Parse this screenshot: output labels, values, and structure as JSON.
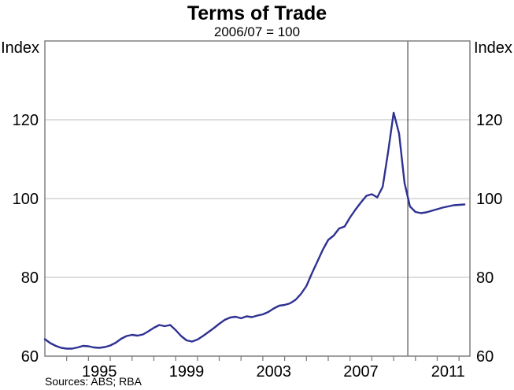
{
  "chart_data": {
    "type": "line",
    "title": "Terms of Trade",
    "subtitle": "2006/07 = 100",
    "y_axis_label_left": "Index",
    "y_axis_label_right": "Index",
    "source_note": "Sources: ABS; RBA",
    "ylim": [
      60,
      140
    ],
    "yticks_labeled": [
      60,
      80,
      100,
      120
    ],
    "gridlines_y": [
      80,
      100,
      120
    ],
    "xlim": [
      1992.5,
      2012.0
    ],
    "xticks": [
      1993.5,
      1994.5,
      1995.5,
      1996.5,
      1997.5,
      1998.5,
      1999.5,
      2000.5,
      2001.5,
      2002.5,
      2003.5,
      2004.5,
      2005.5,
      2006.5,
      2007.5,
      2008.5,
      2009.5,
      2010.5,
      2011.5
    ],
    "xtick_labels": [
      1995,
      1999,
      2003,
      2007,
      2011
    ],
    "vline_x": 2009.15,
    "legend_position": "none",
    "grid": "horizontal-only",
    "colors": {
      "line": "#2e3192",
      "frame": "#808080",
      "gridline": "#bdbdbd",
      "vline": "#4d4d4d",
      "text": "#000000"
    },
    "series": [
      {
        "name": "Terms of trade (quarterly, index 2006/07 = 100)",
        "points": [
          [
            1992.5,
            64.3
          ],
          [
            1992.75,
            63.3
          ],
          [
            1993.0,
            62.6
          ],
          [
            1993.25,
            62.1
          ],
          [
            1993.5,
            61.9
          ],
          [
            1993.75,
            61.9
          ],
          [
            1994.0,
            62.2
          ],
          [
            1994.25,
            62.6
          ],
          [
            1994.5,
            62.5
          ],
          [
            1994.75,
            62.2
          ],
          [
            1995.0,
            62.1
          ],
          [
            1995.25,
            62.3
          ],
          [
            1995.5,
            62.7
          ],
          [
            1995.75,
            63.4
          ],
          [
            1996.0,
            64.4
          ],
          [
            1996.25,
            65.1
          ],
          [
            1996.5,
            65.4
          ],
          [
            1996.75,
            65.2
          ],
          [
            1997.0,
            65.5
          ],
          [
            1997.25,
            66.3
          ],
          [
            1997.5,
            67.2
          ],
          [
            1997.75,
            67.9
          ],
          [
            1998.0,
            67.6
          ],
          [
            1998.25,
            67.9
          ],
          [
            1998.5,
            66.6
          ],
          [
            1998.75,
            65.1
          ],
          [
            1999.0,
            64.0
          ],
          [
            1999.25,
            63.7
          ],
          [
            1999.5,
            64.2
          ],
          [
            1999.75,
            65.1
          ],
          [
            2000.0,
            66.1
          ],
          [
            2000.25,
            67.1
          ],
          [
            2000.5,
            68.2
          ],
          [
            2000.75,
            69.2
          ],
          [
            2001.0,
            69.8
          ],
          [
            2001.25,
            70.0
          ],
          [
            2001.5,
            69.6
          ],
          [
            2001.75,
            70.1
          ],
          [
            2002.0,
            69.9
          ],
          [
            2002.25,
            70.3
          ],
          [
            2002.5,
            70.6
          ],
          [
            2002.75,
            71.2
          ],
          [
            2003.0,
            72.1
          ],
          [
            2003.25,
            72.8
          ],
          [
            2003.5,
            73.0
          ],
          [
            2003.75,
            73.4
          ],
          [
            2004.0,
            74.3
          ],
          [
            2004.25,
            75.8
          ],
          [
            2004.5,
            77.8
          ],
          [
            2004.75,
            81.0
          ],
          [
            2005.0,
            84.0
          ],
          [
            2005.25,
            87.0
          ],
          [
            2005.5,
            89.5
          ],
          [
            2005.75,
            90.6
          ],
          [
            2006.0,
            92.4
          ],
          [
            2006.25,
            92.9
          ],
          [
            2006.5,
            95.2
          ],
          [
            2006.75,
            97.2
          ],
          [
            2007.0,
            99.0
          ],
          [
            2007.25,
            100.7
          ],
          [
            2007.5,
            101.1
          ],
          [
            2007.75,
            100.3
          ],
          [
            2008.0,
            103.0
          ],
          [
            2008.25,
            112.0
          ],
          [
            2008.5,
            121.8
          ],
          [
            2008.75,
            116.5
          ],
          [
            2009.0,
            104.0
          ],
          [
            2009.25,
            98.0
          ],
          [
            2009.5,
            96.6
          ],
          [
            2009.75,
            96.3
          ],
          [
            2010.0,
            96.5
          ],
          [
            2010.25,
            96.9
          ],
          [
            2010.5,
            97.3
          ],
          [
            2010.75,
            97.7
          ],
          [
            2011.0,
            98.0
          ],
          [
            2011.25,
            98.3
          ],
          [
            2011.5,
            98.4
          ],
          [
            2011.75,
            98.5
          ]
        ]
      }
    ]
  }
}
